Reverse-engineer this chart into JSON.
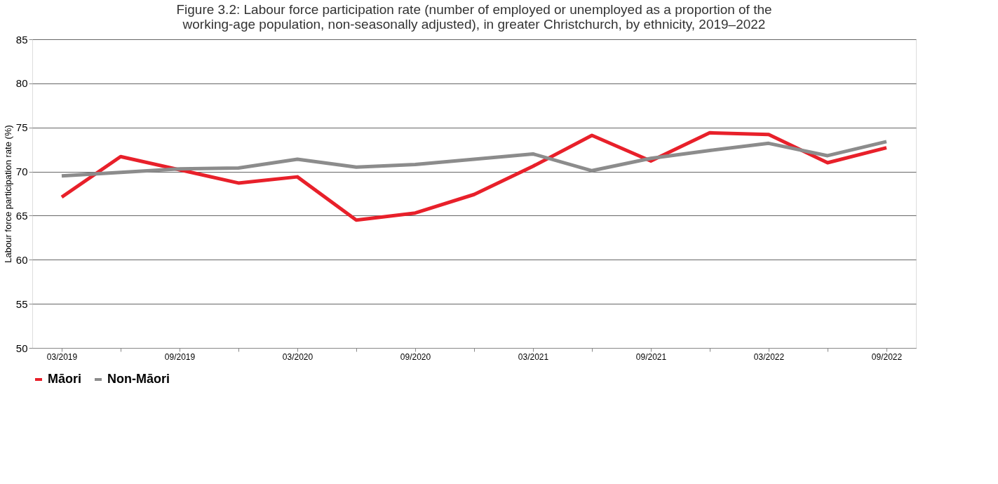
{
  "chart_data": {
    "type": "line",
    "title": "Figure 3.2: Labour force participation rate (number of employed or unemployed as a proportion of the working-age population, non-seasonally adjusted), in greater Christchurch, by ethnicity, 2019–2022",
    "ylabel": "Labour force participation rate (%)",
    "categories": [
      "03/2019",
      null,
      "09/2019",
      null,
      "03/2020",
      null,
      "09/2020",
      null,
      "03/2021",
      null,
      "09/2021",
      null,
      "03/2022",
      null,
      "09/2022"
    ],
    "series": [
      {
        "name": "Māori",
        "color": "#e8202a",
        "values": [
          67.1,
          71.7,
          70.2,
          68.7,
          69.4,
          64.5,
          65.3,
          67.4,
          70.6,
          74.1,
          71.2,
          74.4,
          74.2,
          71.0,
          72.7
        ]
      },
      {
        "name": "Non-Māori",
        "color": "#8c8c8c",
        "values": [
          69.5,
          69.9,
          70.3,
          70.4,
          71.4,
          70.5,
          70.8,
          71.4,
          72.0,
          70.1,
          71.5,
          72.4,
          73.2,
          71.8,
          73.4
        ]
      }
    ],
    "ylim": [
      50,
      85
    ],
    "yticks": [
      50,
      55,
      60,
      65,
      70,
      75,
      80,
      85
    ],
    "grid": "y",
    "legend": "bottom",
    "line_style": "solid",
    "marker": "none"
  }
}
